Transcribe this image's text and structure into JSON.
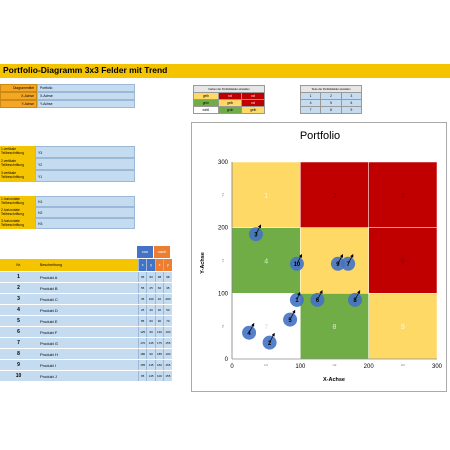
{
  "title": "Portfolio-Diagramm 3x3 Felder mit Trend",
  "settings": [
    {
      "label": "Diagrammtitel",
      "value": "Portfolio"
    },
    {
      "label": "X-Achse",
      "value": "X-Achse"
    },
    {
      "label": "Y-Achse",
      "value": "Y-Achse"
    }
  ],
  "color_table": {
    "header": "Farben der Portfoliofelder einstellen",
    "rows": [
      [
        {
          "t": "gelb",
          "c": "#ffd966"
        },
        {
          "t": "rot",
          "c": "#c00000"
        },
        {
          "t": "rot",
          "c": "#c00000"
        }
      ],
      [
        {
          "t": "grün",
          "c": "#70ad47"
        },
        {
          "t": "gelb",
          "c": "#ffd966"
        },
        {
          "t": "rot",
          "c": "#c00000"
        }
      ],
      [
        {
          "t": "weiß",
          "c": "#ffffff"
        },
        {
          "t": "grün",
          "c": "#70ad47"
        },
        {
          "t": "gelb",
          "c": "#ffd966"
        }
      ]
    ]
  },
  "text_table": {
    "header": "Texte der Portfoliofelder einstellen",
    "rows": [
      [
        "1",
        "2",
        "3"
      ],
      [
        "4",
        "5",
        "6"
      ],
      [
        "7",
        "8",
        "9"
      ]
    ]
  },
  "vertical_labels": [
    {
      "label": "1.vertikale Teilbeschriftung",
      "value": "Y3"
    },
    {
      "label": "2.vertikale Teilbeschriftung",
      "value": "Y2"
    },
    {
      "label": "3.vertikale Teilbeschriftung",
      "value": "Y1"
    }
  ],
  "horizontal_labels": [
    {
      "label": "1.horizontale Teilbeschriftung",
      "value": "H1"
    },
    {
      "label": "2.horizontale Teilbeschriftung",
      "value": "H2"
    },
    {
      "label": "3.horizontale Teilbeschriftung",
      "value": "H3"
    }
  ],
  "table": {
    "col_nr": "Nr.",
    "col_desc": "Beschreibung",
    "von": "von",
    "nach": "nach",
    "sub": [
      "x",
      "y",
      "x",
      "y"
    ],
    "rows": [
      {
        "nr": "1",
        "desc": "Produkt A",
        "v": [
          "95",
          "90",
          "98",
          "98"
        ]
      },
      {
        "nr": "2",
        "desc": "Produkt B",
        "v": [
          "55",
          "25",
          "60",
          "35"
        ]
      },
      {
        "nr": "3",
        "desc": "Produkt C",
        "v": [
          "35",
          "190",
          "40",
          "200"
        ]
      },
      {
        "nr": "4",
        "desc": "Produkt D",
        "v": [
          "25",
          "40",
          "30",
          "50"
        ]
      },
      {
        "nr": "5",
        "desc": "Produkt E",
        "v": [
          "85",
          "60",
          "90",
          "70"
        ]
      },
      {
        "nr": "6",
        "desc": "Produkt F",
        "v": [
          "125",
          "90",
          "130",
          "100"
        ]
      },
      {
        "nr": "7",
        "desc": "Produkt G",
        "v": [
          "170",
          "145",
          "175",
          "155"
        ]
      },
      {
        "nr": "8",
        "desc": "Produkt H",
        "v": [
          "180",
          "90",
          "185",
          "100"
        ]
      },
      {
        "nr": "9",
        "desc": "Produkt I",
        "v": [
          "155",
          "145",
          "160",
          "155"
        ]
      },
      {
        "nr": "10",
        "desc": "Produkt J",
        "v": [
          "95",
          "145",
          "100",
          "155"
        ]
      }
    ]
  },
  "chart_data": {
    "type": "scatter",
    "title": "Portfolio",
    "xlabel": "X-Achse",
    "ylabel": "Y-Achse",
    "xlim": [
      0,
      300
    ],
    "ylim": [
      0,
      300
    ],
    "xticks": [
      "0",
      "100",
      "200",
      "300"
    ],
    "yticks": [
      "0",
      "100",
      "200",
      "300"
    ],
    "cell_colors": [
      [
        "#ffd966",
        "#c00000",
        "#c00000"
      ],
      [
        "#70ad47",
        "#ffd966",
        "#c00000"
      ],
      [
        "#ffffff",
        "#70ad47",
        "#ffd966"
      ]
    ],
    "cell_texts": [
      [
        "1",
        "2",
        "3"
      ],
      [
        "4",
        "5",
        "6"
      ],
      [
        "7",
        "8",
        "9"
      ]
    ],
    "x_section_labels": [
      "H1",
      "H2",
      "H3"
    ],
    "y_section_labels": [
      "Y3",
      "Y2",
      "Y1"
    ],
    "points": [
      {
        "label": "1",
        "x": 95,
        "y": 90,
        "x2": 98,
        "y2": 98
      },
      {
        "label": "2",
        "x": 55,
        "y": 25,
        "x2": 60,
        "y2": 35
      },
      {
        "label": "3",
        "x": 35,
        "y": 190,
        "x2": 40,
        "y2": 200
      },
      {
        "label": "4",
        "x": 25,
        "y": 40,
        "x2": 30,
        "y2": 50
      },
      {
        "label": "5",
        "x": 85,
        "y": 60,
        "x2": 90,
        "y2": 70
      },
      {
        "label": "6",
        "x": 125,
        "y": 90,
        "x2": 130,
        "y2": 100
      },
      {
        "label": "7",
        "x": 170,
        "y": 145,
        "x2": 175,
        "y2": 155
      },
      {
        "label": "8",
        "x": 180,
        "y": 90,
        "x2": 185,
        "y2": 100
      },
      {
        "label": "9",
        "x": 155,
        "y": 145,
        "x2": 160,
        "y2": 155
      },
      {
        "label": "10",
        "x": 95,
        "y": 145,
        "x2": 100,
        "y2": 155
      }
    ],
    "point_color": "#4472c4"
  }
}
